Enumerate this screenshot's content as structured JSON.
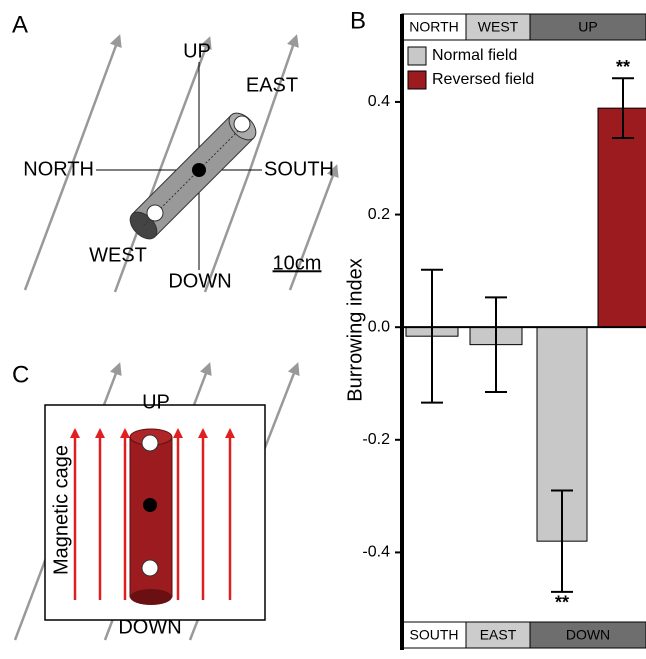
{
  "chart_data": {
    "type": "bar",
    "panel_label": "B",
    "y_label": "Burrowing index",
    "categories": [
      "NORTH",
      "WEST",
      "UP"
    ],
    "categories_bottom": [
      "SOUTH",
      "EAST",
      "DOWN"
    ],
    "band_colors": [
      "#ffffff",
      "#cccccc",
      "#6e6e6e"
    ],
    "series": [
      {
        "name": "Normal field",
        "color": "#c8c8c8",
        "values": [
          -0.016,
          -0.031,
          -0.38
        ],
        "errors": [
          0.118,
          0.084,
          0.09
        ],
        "annotations": [
          null,
          null,
          "**"
        ]
      },
      {
        "name": "Reversed field",
        "color": "#9b1b1e",
        "values": [
          null,
          null,
          0.389
        ],
        "errors": [
          null,
          null,
          0.053
        ],
        "annotations": [
          null,
          null,
          "**"
        ]
      }
    ],
    "ylim": [
      -0.52,
      0.51
    ],
    "yticks": [
      -0.4,
      -0.2,
      {
        "value": 0,
        "label": "0.0"
      },
      0.2,
      0.4
    ],
    "legend": "top-left"
  },
  "panel_a": {
    "label": "A",
    "up": "UP",
    "east": "EAST",
    "north": "NORTH",
    "south": "SOUTH",
    "west": "WEST",
    "down": "DOWN",
    "scale": "10cm"
  },
  "panel_c": {
    "label": "C",
    "up": "UP",
    "down": "DOWN",
    "cage": "Magnetic cage"
  }
}
